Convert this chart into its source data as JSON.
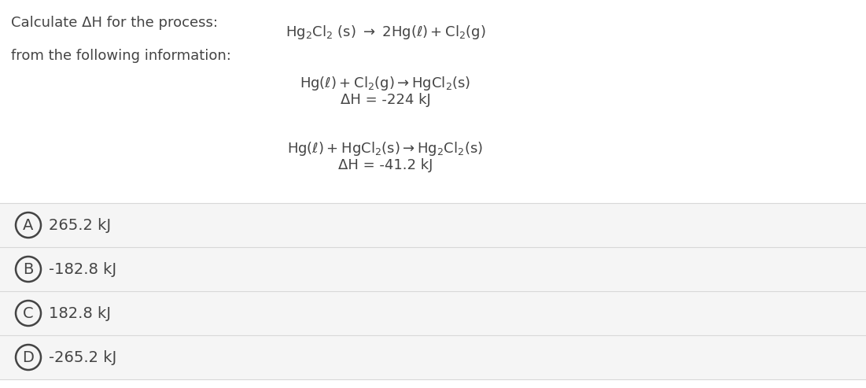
{
  "bg_color": "#ffffff",
  "question_line1": "Calculate ΔH for the process:",
  "question_line2": "from the following information:",
  "main_reaction": "$\\mathrm{Hg_2Cl_2}$ (s) → $\\mathrm{2Hg(\\ell) + Cl_2(g)}$",
  "rxn1_line1": "$\\mathrm{Hg(\\ell) + Cl_2(g) \\rightarrow HgCl_2(s)}$",
  "rxn1_line2": "ΔH = -224 kJ",
  "rxn2_line1": "$\\mathrm{Hg(\\ell) + HgCl_2(s) \\rightarrow Hg_2Cl_2(s)}$",
  "rxn2_line2": "ΔH = -41.2 kJ",
  "options": [
    {
      "label": "A",
      "text": "265.2 kJ"
    },
    {
      "label": "B",
      "text": "-182.8 kJ"
    },
    {
      "label": "C",
      "text": "182.8 kJ"
    },
    {
      "label": "D",
      "text": "-265.2 kJ"
    }
  ],
  "option_bg": "#f5f5f5",
  "text_color": "#444444",
  "circle_color": "#444444",
  "font_size_main": 13,
  "font_size_options": 14,
  "font_size_labels": 14
}
